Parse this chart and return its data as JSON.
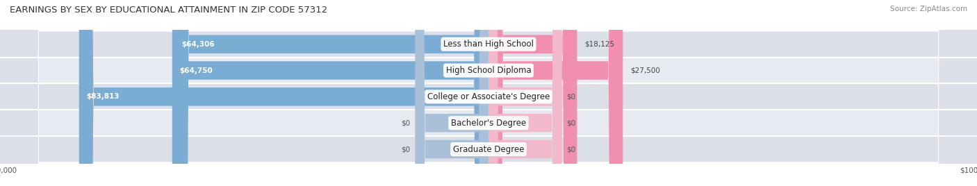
{
  "title": "EARNINGS BY SEX BY EDUCATIONAL ATTAINMENT IN ZIP CODE 57312",
  "source": "Source: ZipAtlas.com",
  "categories": [
    "Less than High School",
    "High School Diploma",
    "College or Associate's Degree",
    "Bachelor's Degree",
    "Graduate Degree"
  ],
  "male_values": [
    64306,
    64750,
    83813,
    0,
    0
  ],
  "female_values": [
    18125,
    27500,
    0,
    0,
    0
  ],
  "male_color": "#7BADD4",
  "female_color": "#F08FAE",
  "placeholder_male_color": "#AABFD8",
  "placeholder_female_color": "#F2B8CC",
  "row_bg_colors": [
    "#DCDEE8",
    "#E8EAF2"
  ],
  "row_separator_color": "#FFFFFF",
  "max_val": 100000,
  "placeholder_val": 15000,
  "title_fontsize": 9.5,
  "label_fontsize": 7.5,
  "axis_fontsize": 7.5,
  "category_fontsize": 8.5
}
